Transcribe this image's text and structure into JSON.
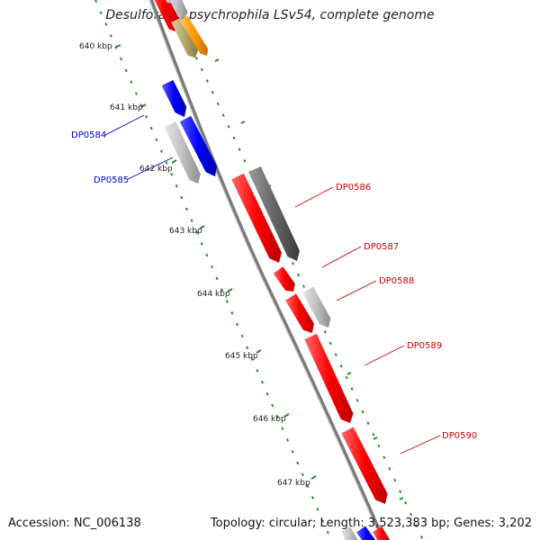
{
  "title": "Desulfotalea psychrophila LSv54, complete genome",
  "footer": {
    "accession": "Accession: NC_006138",
    "summary": "Topology: circular; Length: 3,523,383 bp; Genes: 3,202"
  },
  "ruler_labels": [
    "640 kbp",
    "641 kbp",
    "642 kbp",
    "643 kbp",
    "644 kbp",
    "645 kbp",
    "646 kbp",
    "647 kbp"
  ],
  "genes": [
    {
      "label": "DP0584",
      "color": "#0000cc"
    },
    {
      "label": "DP0585",
      "color": "#0000cc"
    },
    {
      "label": "DP0586",
      "color": "#cc0000"
    },
    {
      "label": "DP0587",
      "color": "#cc0000"
    },
    {
      "label": "DP0588",
      "color": "#cc0000"
    },
    {
      "label": "DP0589",
      "color": "#cc0000"
    },
    {
      "label": "DP0590",
      "color": "#cc0000"
    }
  ],
  "colors": {
    "red_feature": "#ff0000",
    "blue_feature": "#0000ff",
    "grey_feature": "#bbbbbb",
    "dark_grey_feature": "#666666",
    "orange_feature": "#ff9900",
    "olive_feature": "#b5a86a",
    "backbone": "#7a7a7a",
    "tick": "#2a8a2a"
  }
}
